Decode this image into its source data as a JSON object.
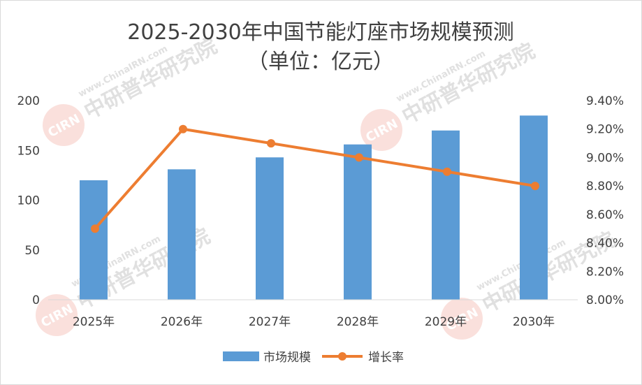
{
  "chart_data": {
    "type": "bar",
    "title": "2025-2030年中国节能灯座市场规模预测",
    "subtitle": "（单位：亿元）",
    "categories": [
      "2025年",
      "2026年",
      "2027年",
      "2028年",
      "2029年",
      "2030年"
    ],
    "series": [
      {
        "name": "市场规模",
        "type": "bar",
        "axis": "left",
        "color": "#5b9bd5",
        "values": [
          120,
          131,
          143,
          156,
          170,
          185
        ]
      },
      {
        "name": "增长率",
        "type": "line",
        "axis": "right",
        "color": "#ed7d31",
        "values": [
          8.5,
          9.2,
          9.1,
          9.0,
          8.9,
          8.8
        ]
      }
    ],
    "y_left": {
      "min": 0,
      "max": 200,
      "step": 50,
      "ticks": [
        "0",
        "50",
        "100",
        "150",
        "200"
      ]
    },
    "y_right": {
      "min": 8.0,
      "max": 9.4,
      "step": 0.2,
      "ticks": [
        "8.00%",
        "8.20%",
        "8.40%",
        "8.60%",
        "8.80%",
        "9.00%",
        "9.20%",
        "9.40%"
      ]
    },
    "grid": false,
    "legend_position": "bottom"
  },
  "watermark": {
    "url_text": "www.ChinaIRN.com",
    "brand_text": "中研普华研究院",
    "logo_text": "CIRN"
  }
}
